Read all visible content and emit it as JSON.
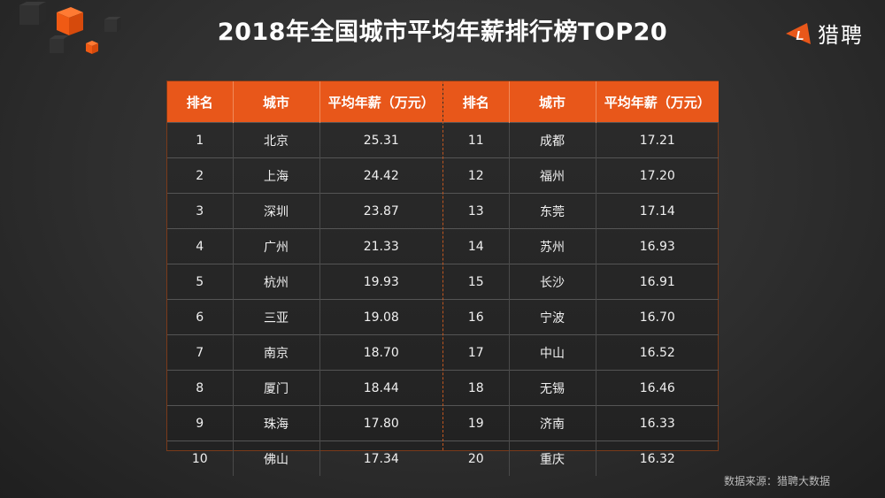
{
  "title": "2018年全国城市平均年薪排行榜TOP20",
  "logo": {
    "icon": "L",
    "text": "猎聘",
    "color": "#e8571a"
  },
  "table": {
    "headers": [
      "排名",
      "城市",
      "平均年薪（万元）"
    ],
    "left": [
      {
        "rank": "1",
        "city": "北京",
        "salary": "25.31"
      },
      {
        "rank": "2",
        "city": "上海",
        "salary": "24.42"
      },
      {
        "rank": "3",
        "city": "深圳",
        "salary": "23.87"
      },
      {
        "rank": "4",
        "city": "广州",
        "salary": "21.33"
      },
      {
        "rank": "5",
        "city": "杭州",
        "salary": "19.93"
      },
      {
        "rank": "6",
        "city": "三亚",
        "salary": "19.08"
      },
      {
        "rank": "7",
        "city": "南京",
        "salary": "18.70"
      },
      {
        "rank": "8",
        "city": "厦门",
        "salary": "18.44"
      },
      {
        "rank": "9",
        "city": "珠海",
        "salary": "17.80"
      },
      {
        "rank": "10",
        "city": "佛山",
        "salary": "17.34"
      }
    ],
    "right": [
      {
        "rank": "11",
        "city": "成都",
        "salary": "17.21"
      },
      {
        "rank": "12",
        "city": "福州",
        "salary": "17.20"
      },
      {
        "rank": "13",
        "city": "东莞",
        "salary": "17.14"
      },
      {
        "rank": "14",
        "city": "苏州",
        "salary": "16.93"
      },
      {
        "rank": "15",
        "city": "长沙",
        "salary": "16.91"
      },
      {
        "rank": "16",
        "city": "宁波",
        "salary": "16.70"
      },
      {
        "rank": "17",
        "city": "中山",
        "salary": "16.52"
      },
      {
        "rank": "18",
        "city": "无锡",
        "salary": "16.46"
      },
      {
        "rank": "19",
        "city": "济南",
        "salary": "16.33"
      },
      {
        "rank": "20",
        "city": "重庆",
        "salary": "16.32"
      }
    ]
  },
  "source": "数据来源：猎聘大数据",
  "colors": {
    "accent": "#e8571a",
    "background": "#2e2e2e"
  },
  "chart_data": {
    "type": "table",
    "title": "2018年全国城市平均年薪排行榜TOP20",
    "columns": [
      "排名",
      "城市",
      "平均年薪（万元）"
    ],
    "categories": [
      "北京",
      "上海",
      "深圳",
      "广州",
      "杭州",
      "三亚",
      "南京",
      "厦门",
      "珠海",
      "佛山",
      "成都",
      "福州",
      "东莞",
      "苏州",
      "长沙",
      "宁波",
      "中山",
      "无锡",
      "济南",
      "重庆"
    ],
    "values": [
      25.31,
      24.42,
      23.87,
      21.33,
      19.93,
      19.08,
      18.7,
      18.44,
      17.8,
      17.34,
      17.21,
      17.2,
      17.14,
      16.93,
      16.91,
      16.7,
      16.52,
      16.46,
      16.33,
      16.32
    ],
    "ylabel": "平均年薪（万元）",
    "source": "数据来源：猎聘大数据"
  }
}
